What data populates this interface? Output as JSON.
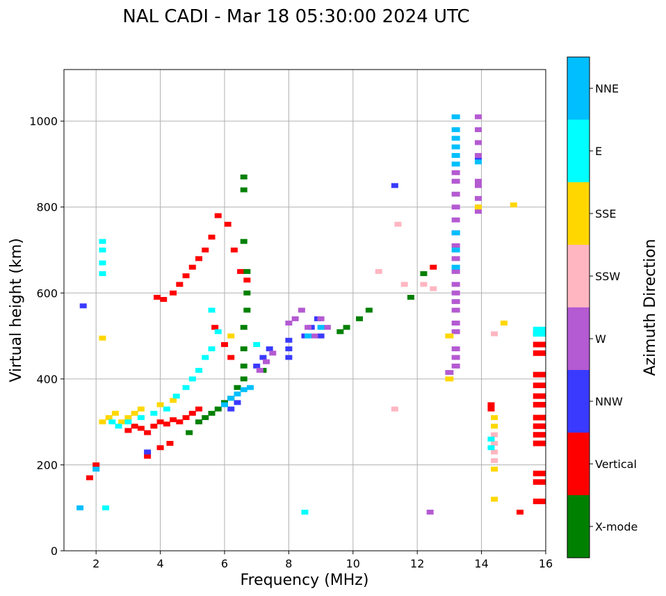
{
  "chart_data": {
    "type": "scatter",
    "title": "NAL CADI - Mar 18 05:30:00 2024 UTC",
    "xlabel": "Frequency (MHz)",
    "ylabel": "Virtual height (km)",
    "xlim": [
      1,
      16
    ],
    "ylim": [
      0,
      1120
    ],
    "xticks": [
      2,
      4,
      6,
      8,
      10,
      12,
      14,
      16
    ],
    "yticks": [
      0,
      200,
      400,
      600,
      800,
      1000
    ],
    "grid": true,
    "colorbar": {
      "title": "Azimuth Direction",
      "categories": [
        "X-mode",
        "Vertical",
        "NNW",
        "W",
        "SSW",
        "SSE",
        "E",
        "NNE"
      ],
      "colors": [
        "#008000",
        "#ff0000",
        "#3a3aff",
        "#b45ad2",
        "#ffb6c1",
        "#ffd700",
        "#00ffff",
        "#00bfff"
      ]
    },
    "series": [
      {
        "name": "Vertical",
        "points": [
          [
            3.0,
            280
          ],
          [
            3.2,
            290
          ],
          [
            3.4,
            285
          ],
          [
            3.6,
            275
          ],
          [
            3.8,
            290
          ],
          [
            4.0,
            300
          ],
          [
            4.2,
            295
          ],
          [
            4.4,
            305
          ],
          [
            4.6,
            300
          ],
          [
            4.8,
            310
          ],
          [
            5.0,
            320
          ],
          [
            5.2,
            330
          ],
          [
            3.9,
            590
          ],
          [
            4.1,
            585
          ],
          [
            4.4,
            600
          ],
          [
            4.6,
            620
          ],
          [
            4.8,
            640
          ],
          [
            5.0,
            660
          ],
          [
            5.2,
            680
          ],
          [
            5.4,
            700
          ],
          [
            5.6,
            730
          ],
          [
            5.8,
            780
          ],
          [
            6.1,
            760
          ],
          [
            6.3,
            700
          ],
          [
            6.5,
            650
          ],
          [
            6.7,
            630
          ],
          [
            5.7,
            520
          ],
          [
            6.0,
            480
          ],
          [
            6.2,
            450
          ],
          [
            3.6,
            220
          ],
          [
            4.0,
            240
          ],
          [
            4.3,
            250
          ],
          [
            1.8,
            170
          ],
          [
            2.0,
            200
          ],
          [
            12.5,
            660
          ],
          [
            14.3,
            340
          ],
          [
            14.3,
            330
          ],
          [
            15.2,
            90
          ],
          [
            15.8,
            505
          ],
          [
            15.8,
            480
          ],
          [
            15.8,
            460
          ],
          [
            15.8,
            410
          ],
          [
            15.8,
            385
          ],
          [
            15.8,
            360
          ],
          [
            15.8,
            340
          ],
          [
            15.8,
            310
          ],
          [
            15.8,
            290
          ],
          [
            15.8,
            270
          ],
          [
            15.8,
            250
          ],
          [
            15.8,
            180
          ],
          [
            15.8,
            160
          ],
          [
            15.8,
            115
          ]
        ]
      },
      {
        "name": "X-mode",
        "points": [
          [
            5.2,
            300
          ],
          [
            5.4,
            310
          ],
          [
            5.6,
            320
          ],
          [
            5.8,
            330
          ],
          [
            6.0,
            345
          ],
          [
            6.2,
            355
          ],
          [
            6.4,
            380
          ],
          [
            6.6,
            400
          ],
          [
            6.6,
            430
          ],
          [
            6.6,
            470
          ],
          [
            6.6,
            520
          ],
          [
            6.7,
            560
          ],
          [
            6.7,
            600
          ],
          [
            6.7,
            650
          ],
          [
            6.6,
            720
          ],
          [
            6.6,
            840
          ],
          [
            6.6,
            870
          ],
          [
            7.2,
            420
          ],
          [
            4.9,
            275
          ],
          [
            9.6,
            510
          ],
          [
            9.8,
            520
          ],
          [
            10.2,
            540
          ],
          [
            10.5,
            560
          ],
          [
            11.8,
            590
          ],
          [
            12.2,
            645
          ]
        ]
      },
      {
        "name": "NNW",
        "points": [
          [
            6.2,
            330
          ],
          [
            6.4,
            345
          ],
          [
            7.0,
            430
          ],
          [
            7.2,
            450
          ],
          [
            7.4,
            470
          ],
          [
            8.0,
            450
          ],
          [
            8.0,
            470
          ],
          [
            8.0,
            490
          ],
          [
            8.5,
            500
          ],
          [
            8.7,
            520
          ],
          [
            8.9,
            540
          ],
          [
            9.0,
            500
          ],
          [
            11.3,
            850
          ],
          [
            13.9,
            910
          ],
          [
            1.6,
            570
          ],
          [
            3.6,
            230
          ]
        ]
      },
      {
        "name": "W",
        "points": [
          [
            7.1,
            420
          ],
          [
            7.3,
            440
          ],
          [
            7.5,
            460
          ],
          [
            8.0,
            530
          ],
          [
            8.2,
            540
          ],
          [
            8.4,
            560
          ],
          [
            8.6,
            520
          ],
          [
            8.8,
            500
          ],
          [
            9.0,
            540
          ],
          [
            9.2,
            520
          ],
          [
            13.2,
            430
          ],
          [
            13.2,
            450
          ],
          [
            13.2,
            470
          ],
          [
            13.2,
            510
          ],
          [
            13.2,
            530
          ],
          [
            13.2,
            560
          ],
          [
            13.2,
            580
          ],
          [
            13.2,
            600
          ],
          [
            13.2,
            620
          ],
          [
            13.2,
            650
          ],
          [
            13.2,
            680
          ],
          [
            13.2,
            710
          ],
          [
            13.2,
            740
          ],
          [
            13.2,
            770
          ],
          [
            13.2,
            800
          ],
          [
            13.2,
            830
          ],
          [
            13.2,
            860
          ],
          [
            13.2,
            880
          ],
          [
            13.9,
            790
          ],
          [
            13.9,
            800
          ],
          [
            13.9,
            820
          ],
          [
            13.9,
            850
          ],
          [
            13.9,
            860
          ],
          [
            13.9,
            920
          ],
          [
            13.9,
            950
          ],
          [
            13.9,
            980
          ],
          [
            13.9,
            1010
          ],
          [
            13.0,
            415
          ],
          [
            12.4,
            90
          ]
        ]
      },
      {
        "name": "SSW",
        "points": [
          [
            11.4,
            760
          ],
          [
            11.6,
            620
          ],
          [
            12.2,
            620
          ],
          [
            12.5,
            610
          ],
          [
            14.4,
            210
          ],
          [
            14.4,
            230
          ],
          [
            14.4,
            250
          ],
          [
            14.4,
            270
          ],
          [
            14.4,
            505
          ],
          [
            11.3,
            330
          ],
          [
            10.8,
            650
          ]
        ]
      },
      {
        "name": "SSE",
        "points": [
          [
            2.2,
            300
          ],
          [
            2.4,
            310
          ],
          [
            2.6,
            320
          ],
          [
            2.8,
            300
          ],
          [
            3.0,
            310
          ],
          [
            3.2,
            320
          ],
          [
            3.4,
            330
          ],
          [
            4.0,
            340
          ],
          [
            4.4,
            350
          ],
          [
            14.4,
            120
          ],
          [
            14.4,
            190
          ],
          [
            14.4,
            290
          ],
          [
            14.4,
            310
          ],
          [
            14.7,
            530
          ],
          [
            15.0,
            805
          ],
          [
            13.0,
            400
          ],
          [
            13.0,
            500
          ],
          [
            13.9,
            800
          ],
          [
            6.2,
            500
          ],
          [
            2.2,
            495
          ]
        ]
      },
      {
        "name": "E",
        "points": [
          [
            2.2,
            645
          ],
          [
            2.2,
            670
          ],
          [
            2.2,
            700
          ],
          [
            2.2,
            720
          ],
          [
            2.3,
            100
          ],
          [
            2.5,
            300
          ],
          [
            2.7,
            290
          ],
          [
            3.0,
            300
          ],
          [
            3.4,
            310
          ],
          [
            3.8,
            320
          ],
          [
            4.2,
            330
          ],
          [
            4.5,
            360
          ],
          [
            4.8,
            380
          ],
          [
            5.0,
            400
          ],
          [
            5.2,
            420
          ],
          [
            5.4,
            450
          ],
          [
            5.6,
            470
          ],
          [
            5.8,
            510
          ],
          [
            5.6,
            560
          ],
          [
            7.0,
            480
          ],
          [
            8.5,
            90
          ],
          [
            14.3,
            240
          ],
          [
            14.3,
            260
          ],
          [
            15.8,
            515
          ],
          [
            15.8,
            505
          ]
        ]
      },
      {
        "name": "NNE",
        "points": [
          [
            6.0,
            340
          ],
          [
            6.2,
            355
          ],
          [
            6.4,
            365
          ],
          [
            6.6,
            375
          ],
          [
            6.8,
            380
          ],
          [
            13.2,
            660
          ],
          [
            13.2,
            700
          ],
          [
            13.2,
            740
          ],
          [
            13.2,
            900
          ],
          [
            13.2,
            920
          ],
          [
            13.2,
            940
          ],
          [
            13.2,
            960
          ],
          [
            13.2,
            980
          ],
          [
            13.2,
            1010
          ],
          [
            13.9,
            905
          ],
          [
            1.5,
            100
          ],
          [
            2.0,
            190
          ],
          [
            8.6,
            500
          ],
          [
            9.0,
            520
          ]
        ]
      }
    ]
  }
}
